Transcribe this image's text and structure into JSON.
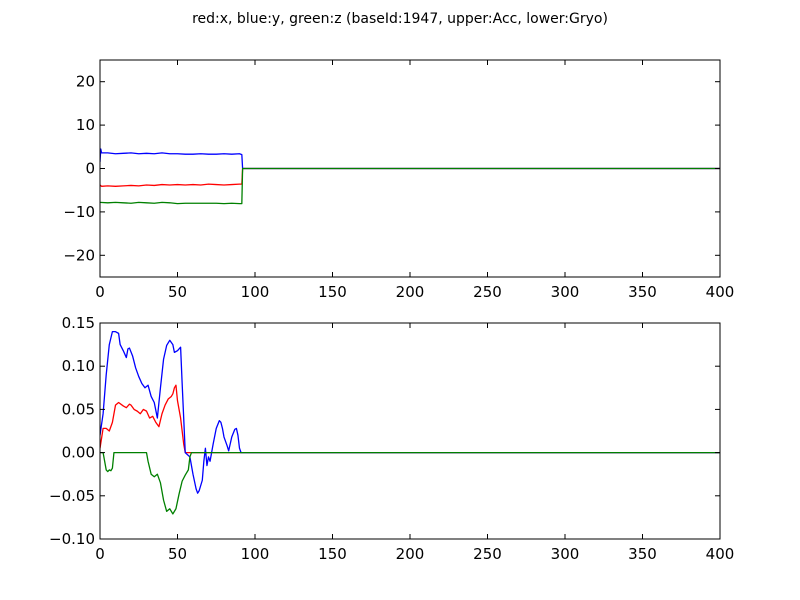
{
  "title": "red:x, blue:y, green:z (baseId:1947, upper:Acc, lower:Gryo)",
  "chart_data": [
    {
      "type": "line",
      "xlim": [
        0,
        400
      ],
      "ylim": [
        -25,
        25
      ],
      "xticks": [
        0,
        50,
        100,
        150,
        200,
        250,
        300,
        350,
        400
      ],
      "yticks": [
        -20,
        -10,
        0,
        10,
        20
      ],
      "ytick_labels": [
        "−20",
        "−10",
        "0",
        "10",
        "20"
      ],
      "grid": false,
      "series": [
        {
          "color": "#ff0000",
          "points": [
            [
              0,
              -3.8
            ],
            [
              1,
              -4.1
            ],
            [
              5,
              -4.0
            ],
            [
              10,
              -4.1
            ],
            [
              15,
              -4.0
            ],
            [
              20,
              -3.9
            ],
            [
              25,
              -4.0
            ],
            [
              30,
              -3.8
            ],
            [
              35,
              -3.9
            ],
            [
              40,
              -3.7
            ],
            [
              45,
              -3.8
            ],
            [
              50,
              -3.7
            ],
            [
              55,
              -3.8
            ],
            [
              60,
              -3.7
            ],
            [
              65,
              -3.8
            ],
            [
              70,
              -3.6
            ],
            [
              75,
              -3.7
            ],
            [
              80,
              -3.8
            ],
            [
              85,
              -3.7
            ],
            [
              90,
              -3.6
            ],
            [
              91.5,
              -3.6
            ],
            [
              92,
              0
            ],
            [
              400,
              0
            ]
          ]
        },
        {
          "color": "#0000ff",
          "points": [
            [
              0,
              1.5
            ],
            [
              0.5,
              4.5
            ],
            [
              1,
              3.6
            ],
            [
              5,
              3.6
            ],
            [
              10,
              3.4
            ],
            [
              15,
              3.5
            ],
            [
              20,
              3.6
            ],
            [
              25,
              3.4
            ],
            [
              30,
              3.5
            ],
            [
              35,
              3.4
            ],
            [
              40,
              3.6
            ],
            [
              45,
              3.4
            ],
            [
              50,
              3.4
            ],
            [
              55,
              3.3
            ],
            [
              60,
              3.3
            ],
            [
              65,
              3.4
            ],
            [
              70,
              3.3
            ],
            [
              75,
              3.3
            ],
            [
              80,
              3.4
            ],
            [
              85,
              3.3
            ],
            [
              90,
              3.4
            ],
            [
              91.5,
              3.2
            ],
            [
              92,
              0
            ],
            [
              400,
              0
            ]
          ]
        },
        {
          "color": "#008000",
          "points": [
            [
              0,
              -7.8
            ],
            [
              5,
              -7.9
            ],
            [
              10,
              -7.8
            ],
            [
              15,
              -7.9
            ],
            [
              20,
              -8.0
            ],
            [
              25,
              -7.8
            ],
            [
              30,
              -7.9
            ],
            [
              35,
              -8.0
            ],
            [
              40,
              -7.8
            ],
            [
              45,
              -7.9
            ],
            [
              50,
              -8.1
            ],
            [
              55,
              -8.0
            ],
            [
              60,
              -8.0
            ],
            [
              65,
              -8.0
            ],
            [
              70,
              -8.0
            ],
            [
              75,
              -8.0
            ],
            [
              80,
              -8.1
            ],
            [
              85,
              -8.0
            ],
            [
              90,
              -8.1
            ],
            [
              91.5,
              -8.1
            ],
            [
              92,
              0
            ],
            [
              400,
              0
            ]
          ]
        }
      ]
    },
    {
      "type": "line",
      "xlim": [
        0,
        400
      ],
      "ylim": [
        -0.1,
        0.15
      ],
      "xticks": [
        0,
        50,
        100,
        150,
        200,
        250,
        300,
        350,
        400
      ],
      "yticks": [
        -0.1,
        -0.05,
        0.0,
        0.05,
        0.1,
        0.15
      ],
      "ytick_labels": [
        "−0.10",
        "−0.05",
        "0.00",
        "0.05",
        "0.10",
        "0.15"
      ],
      "grid": false,
      "series": [
        {
          "color": "#ff0000",
          "points": [
            [
              0,
              0.005
            ],
            [
              2,
              0.028
            ],
            [
              4,
              0.028
            ],
            [
              6,
              0.025
            ],
            [
              8,
              0.035
            ],
            [
              10,
              0.055
            ],
            [
              12,
              0.058
            ],
            [
              15,
              0.054
            ],
            [
              17,
              0.052
            ],
            [
              19,
              0.056
            ],
            [
              20,
              0.055
            ],
            [
              22,
              0.05
            ],
            [
              24,
              0.048
            ],
            [
              26,
              0.045
            ],
            [
              28,
              0.05
            ],
            [
              30,
              0.048
            ],
            [
              32,
              0.04
            ],
            [
              34,
              0.042
            ],
            [
              36,
              0.035
            ],
            [
              38,
              0.03
            ],
            [
              40,
              0.045
            ],
            [
              42,
              0.055
            ],
            [
              44,
              0.062
            ],
            [
              46,
              0.065
            ],
            [
              47,
              0.068
            ],
            [
              48,
              0.075
            ],
            [
              49,
              0.078
            ],
            [
              50,
              0.06
            ],
            [
              52,
              0.04
            ],
            [
              54,
              0.01
            ],
            [
              55,
              0.0
            ],
            [
              400,
              0.0
            ]
          ]
        },
        {
          "color": "#0000ff",
          "points": [
            [
              0,
              0.02
            ],
            [
              2,
              0.045
            ],
            [
              4,
              0.09
            ],
            [
              6,
              0.125
            ],
            [
              8,
              0.14
            ],
            [
              10,
              0.14
            ],
            [
              12,
              0.138
            ],
            [
              13,
              0.125
            ],
            [
              15,
              0.118
            ],
            [
              17,
              0.11
            ],
            [
              18,
              0.12
            ],
            [
              19,
              0.121
            ],
            [
              21,
              0.112
            ],
            [
              23,
              0.098
            ],
            [
              25,
              0.088
            ],
            [
              27,
              0.08
            ],
            [
              29,
              0.075
            ],
            [
              31,
              0.078
            ],
            [
              33,
              0.065
            ],
            [
              35,
              0.058
            ],
            [
              37,
              0.04
            ],
            [
              39,
              0.075
            ],
            [
              41,
              0.108
            ],
            [
              43,
              0.124
            ],
            [
              45,
              0.13
            ],
            [
              47,
              0.125
            ],
            [
              48,
              0.116
            ],
            [
              50,
              0.118
            ],
            [
              52,
              0.122
            ],
            [
              53,
              0.08
            ],
            [
              54,
              0.04
            ],
            [
              55,
              0.0
            ],
            [
              58,
              -0.005
            ],
            [
              60,
              -0.025
            ],
            [
              62,
              -0.042
            ],
            [
              63,
              -0.047
            ],
            [
              64,
              -0.044
            ],
            [
              66,
              -0.032
            ],
            [
              67,
              -0.01
            ],
            [
              68,
              0.005
            ],
            [
              69,
              -0.015
            ],
            [
              70,
              -0.005
            ],
            [
              71,
              -0.01
            ],
            [
              73,
              0.01
            ],
            [
              75,
              0.028
            ],
            [
              77,
              0.037
            ],
            [
              78,
              0.035
            ],
            [
              79,
              0.028
            ],
            [
              80,
              0.018
            ],
            [
              82,
              0.008
            ],
            [
              83,
              0.002
            ],
            [
              85,
              0.018
            ],
            [
              87,
              0.027
            ],
            [
              88,
              0.028
            ],
            [
              89,
              0.02
            ],
            [
              90,
              0.005
            ],
            [
              91,
              0.0
            ],
            [
              400,
              0.0
            ]
          ]
        },
        {
          "color": "#008000",
          "points": [
            [
              0,
              0.0
            ],
            [
              2,
              0.0
            ],
            [
              4,
              -0.02
            ],
            [
              5,
              -0.022
            ],
            [
              6,
              -0.02
            ],
            [
              7,
              -0.021
            ],
            [
              8,
              -0.018
            ],
            [
              9,
              0.0
            ],
            [
              30,
              0.0
            ],
            [
              31,
              -0.01
            ],
            [
              33,
              -0.025
            ],
            [
              35,
              -0.028
            ],
            [
              37,
              -0.025
            ],
            [
              39,
              -0.035
            ],
            [
              41,
              -0.055
            ],
            [
              43,
              -0.068
            ],
            [
              45,
              -0.065
            ],
            [
              47,
              -0.071
            ],
            [
              49,
              -0.065
            ],
            [
              51,
              -0.048
            ],
            [
              53,
              -0.033
            ],
            [
              55,
              -0.026
            ],
            [
              57,
              -0.02
            ],
            [
              58,
              -0.005
            ],
            [
              59,
              0.0
            ],
            [
              400,
              0.0
            ]
          ]
        }
      ]
    }
  ]
}
